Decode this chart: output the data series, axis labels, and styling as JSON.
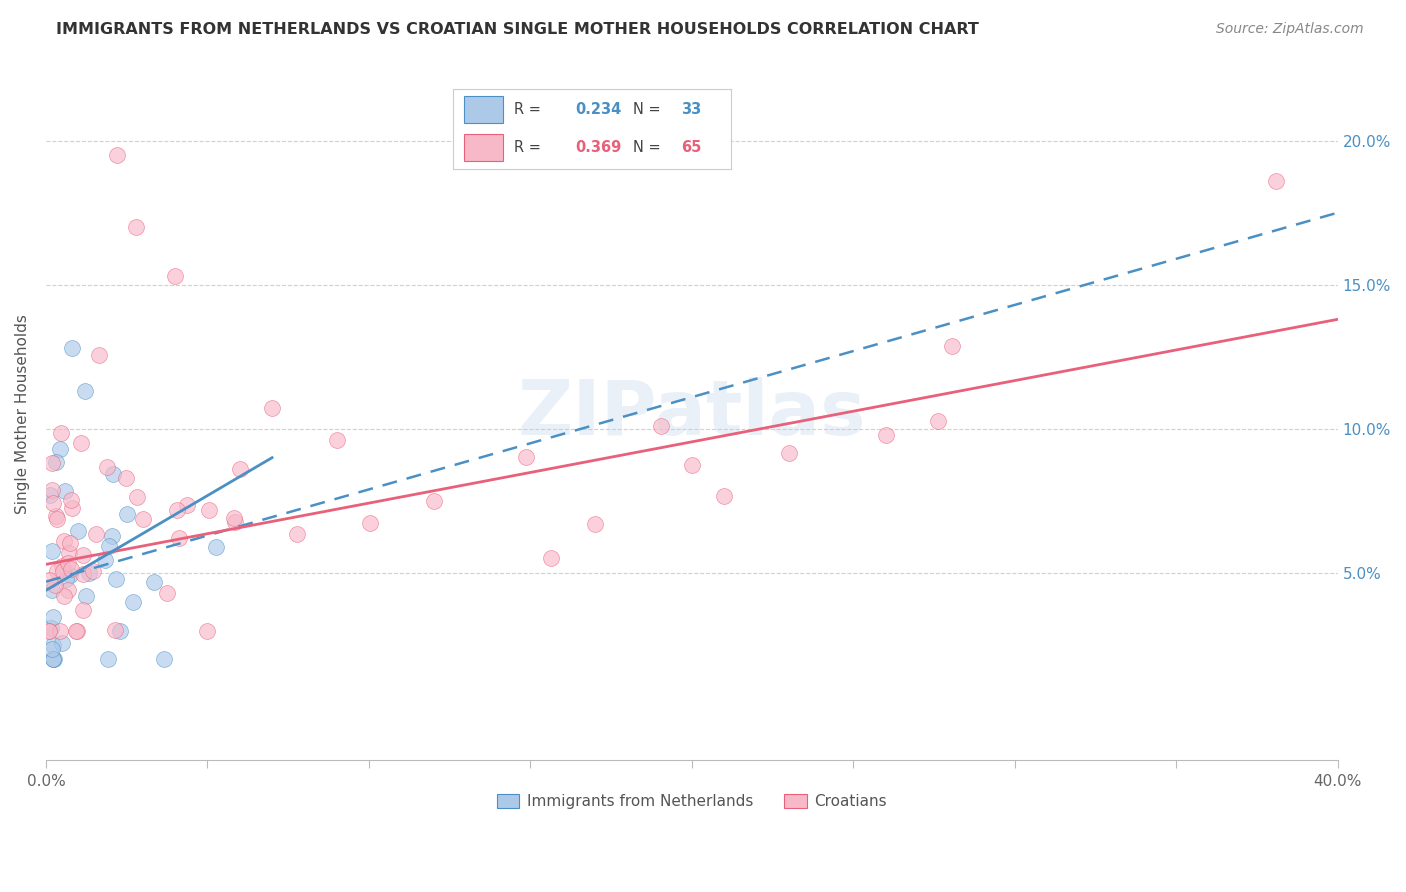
{
  "title": "IMMIGRANTS FROM NETHERLANDS VS CROATIAN SINGLE MOTHER HOUSEHOLDS CORRELATION CHART",
  "source": "Source: ZipAtlas.com",
  "ylabel": "Single Mother Households",
  "xlim": [
    0.0,
    0.4
  ],
  "ylim": [
    -0.015,
    0.225
  ],
  "color_blue": "#adc9e8",
  "color_pink": "#f7b8c8",
  "color_blue_line": "#4a90c4",
  "color_pink_line": "#e8607a",
  "color_blue_text": "#4a90c4",
  "color_pink_text": "#e8607a",
  "watermark": "ZIPatlas",
  "nl_line_x0": 0.0,
  "nl_line_y0": 0.047,
  "nl_line_x1": 0.4,
  "nl_line_y1": 0.175,
  "cr_line_x0": 0.0,
  "cr_line_y0": 0.053,
  "cr_line_x1": 0.4,
  "cr_line_y1": 0.138,
  "scatter_size": 130,
  "scatter_alpha": 0.65
}
